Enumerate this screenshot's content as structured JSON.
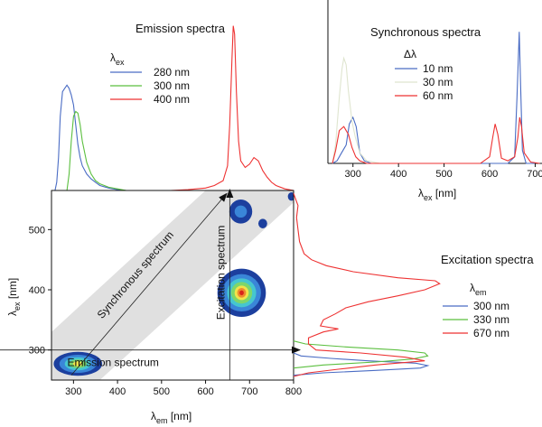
{
  "colors": {
    "blue": "#4a6cc4",
    "green": "#5bbf3f",
    "red": "#ee3232",
    "pale": "#dfe5cf",
    "band": "#e0e0e0",
    "contour_levels": [
      "#1c3f9e",
      "#3a86d8",
      "#45c6cf",
      "#7ed66a",
      "#f2e34a",
      "#ee8a2f",
      "#d8231b"
    ]
  },
  "chart_data": [
    {
      "id": "emission",
      "type": "line",
      "title": "Emission spectra",
      "legend_title_main": "λ",
      "legend_title_sub": "ex",
      "legend_position": "top-left",
      "xlim": [
        250,
        800
      ],
      "ylim": [
        0,
        1.02
      ],
      "series": [
        {
          "name": "280 nm",
          "color": "#4a6cc4",
          "x": [
            258,
            262,
            266,
            270,
            275,
            280,
            285,
            290,
            295,
            300,
            305,
            310,
            315,
            320,
            330,
            340,
            350,
            360,
            380,
            400,
            420
          ],
          "y": [
            0.0,
            0.05,
            0.2,
            0.45,
            0.6,
            0.62,
            0.64,
            0.62,
            0.58,
            0.52,
            0.4,
            0.28,
            0.2,
            0.15,
            0.1,
            0.07,
            0.05,
            0.03,
            0.015,
            0.005,
            0.0
          ]
        },
        {
          "name": "300 nm",
          "color": "#5bbf3f",
          "x": [
            285,
            290,
            295,
            300,
            305,
            310,
            315,
            320,
            330,
            340,
            350,
            360,
            380,
            400,
            420
          ],
          "y": [
            0.0,
            0.1,
            0.3,
            0.45,
            0.48,
            0.47,
            0.4,
            0.3,
            0.17,
            0.1,
            0.06,
            0.04,
            0.02,
            0.01,
            0.0
          ]
        },
        {
          "name": "400 nm",
          "color": "#ee3232",
          "x": [
            410,
            440,
            480,
            520,
            560,
            600,
            620,
            640,
            650,
            655,
            660,
            663,
            666,
            670,
            675,
            680,
            690,
            700,
            710,
            720,
            730,
            740,
            750,
            760,
            780,
            800
          ],
          "y": [
            0.0,
            0.0,
            0.0,
            0.0,
            0.005,
            0.015,
            0.03,
            0.06,
            0.15,
            0.4,
            0.8,
            1.0,
            0.95,
            0.6,
            0.3,
            0.18,
            0.14,
            0.16,
            0.2,
            0.18,
            0.12,
            0.08,
            0.05,
            0.03,
            0.01,
            0.0
          ]
        }
      ]
    },
    {
      "id": "synchronous",
      "type": "line",
      "title": "Synchronous  spectra",
      "xlabel_main": "λ",
      "xlabel_sub": "ex",
      "xlabel_unit": " [nm]",
      "legend_title": "Δλ",
      "legend_position": "top-center",
      "xticks": [
        300,
        400,
        500,
        600,
        700
      ],
      "xlim": [
        245,
        715
      ],
      "ylim": [
        0,
        1.05
      ],
      "series": [
        {
          "name": "10 nm",
          "color": "#4a6cc4",
          "x": [
            255,
            265,
            275,
            285,
            292,
            300,
            307,
            315,
            325,
            340,
            400,
            600,
            640,
            655,
            660,
            665,
            668,
            672,
            680,
            700
          ],
          "y": [
            0.0,
            0.02,
            0.08,
            0.14,
            0.3,
            0.35,
            0.28,
            0.08,
            0.02,
            0.0,
            0.0,
            0.0,
            0.0,
            0.05,
            0.5,
            1.0,
            0.6,
            0.1,
            0.0,
            0.0
          ]
        },
        {
          "name": "30 nm",
          "color": "#dfe5cf",
          "x": [
            255,
            262,
            270,
            276,
            280,
            285,
            290,
            298,
            305,
            315,
            330,
            360,
            400
          ],
          "y": [
            0.0,
            0.15,
            0.5,
            0.72,
            0.8,
            0.75,
            0.55,
            0.32,
            0.2,
            0.08,
            0.02,
            0.0,
            0.0
          ]
        },
        {
          "name": "60 nm",
          "color": "#ee3232",
          "x": [
            255,
            262,
            270,
            280,
            290,
            298,
            306,
            315,
            330,
            400,
            580,
            600,
            607,
            612,
            618,
            626,
            640,
            655,
            662,
            666,
            670,
            676,
            690,
            710
          ],
          "y": [
            0.0,
            0.1,
            0.25,
            0.28,
            0.22,
            0.12,
            0.05,
            0.02,
            0.0,
            0.0,
            0.0,
            0.05,
            0.2,
            0.3,
            0.22,
            0.04,
            0.02,
            0.05,
            0.2,
            0.35,
            0.28,
            0.08,
            0.01,
            0.0
          ]
        }
      ]
    },
    {
      "id": "eem",
      "type": "heatmap",
      "xlabel_main": "λ",
      "xlabel_sub": "em",
      "xlabel_unit": " [nm]",
      "ylabel_main": "λ",
      "ylabel_sub": "ex",
      "ylabel_unit": " [nm]",
      "xlim": [
        250,
        800
      ],
      "ylim": [
        250,
        565
      ],
      "xticks": [
        300,
        400,
        500,
        600,
        700,
        800
      ],
      "yticks": [
        300,
        400,
        500
      ],
      "band_polygon": [
        [
          250,
          250
        ],
        [
          360,
          250
        ],
        [
          800,
          545
        ],
        [
          800,
          565
        ],
        [
          600,
          565
        ],
        [
          250,
          330
        ]
      ],
      "emission_line": {
        "y": 300,
        "label": "Emission spectrum"
      },
      "excitation_line": {
        "x": 655,
        "label": "Excitation spectrum"
      },
      "synchronous_line": {
        "x0": 295,
        "y0": 258,
        "x1": 648,
        "y1": 560,
        "label": "Synchronous spectrum"
      },
      "peaks": [
        {
          "x": 310,
          "y": 277,
          "rx": [
            55,
            42,
            30,
            20,
            11
          ],
          "ry": [
            20,
            15,
            11,
            7,
            4
          ],
          "levels": [
            0,
            1,
            2,
            3,
            4
          ]
        },
        {
          "x": 682,
          "y": 395,
          "rx": [
            55,
            44,
            33,
            24,
            16,
            10,
            5
          ],
          "ry": [
            40,
            31,
            24,
            18,
            12,
            8,
            4
          ],
          "levels": [
            0,
            1,
            2,
            3,
            4,
            5,
            6
          ]
        },
        {
          "x": 680,
          "y": 530,
          "rx": [
            26,
            14
          ],
          "ry": [
            20,
            10
          ],
          "levels": [
            0,
            1
          ]
        },
        {
          "x": 730,
          "y": 510,
          "rx": [
            10
          ],
          "ry": [
            8
          ],
          "levels": [
            0
          ]
        },
        {
          "x": 795,
          "y": 555,
          "rx": [
            8
          ],
          "ry": [
            7
          ],
          "levels": [
            0
          ]
        }
      ]
    },
    {
      "id": "excitation",
      "type": "line",
      "orientation": "vertical",
      "title": "Excitation spectra",
      "legend_title_main": "λ",
      "legend_title_sub": "em",
      "legend_position": "right",
      "ylim": [
        250,
        565
      ],
      "xlim": [
        0,
        1.0
      ],
      "series": [
        {
          "name": " 300 nm",
          "color": "#4a6cc4",
          "y": [
            258,
            262,
            266,
            270,
            274,
            278,
            282,
            286,
            290,
            295
          ],
          "x": [
            0.0,
            0.2,
            0.55,
            0.85,
            0.9,
            0.82,
            0.5,
            0.25,
            0.05,
            0.0
          ]
        },
        {
          "name": "330 nm",
          "color": "#5bbf3f",
          "y": [
            270,
            275,
            280,
            285,
            290,
            295,
            300,
            305,
            310,
            315
          ],
          "x": [
            0.0,
            0.2,
            0.55,
            0.8,
            0.9,
            0.88,
            0.7,
            0.35,
            0.08,
            0.0
          ]
        },
        {
          "name": "670 nm",
          "color": "#ee3232",
          "y": [
            256,
            262,
            268,
            275,
            282,
            288,
            295,
            300,
            310,
            320,
            330,
            335,
            340,
            350,
            360,
            370,
            380,
            390,
            400,
            410,
            415,
            420,
            430,
            440,
            450,
            460,
            480,
            500,
            520,
            540,
            560
          ],
          "x": [
            0.0,
            0.1,
            0.3,
            0.55,
            0.88,
            0.75,
            0.45,
            0.15,
            0.1,
            0.1,
            0.2,
            0.3,
            0.18,
            0.2,
            0.28,
            0.35,
            0.5,
            0.7,
            0.88,
            0.98,
            0.95,
            0.7,
            0.4,
            0.22,
            0.12,
            0.07,
            0.04,
            0.03,
            0.02,
            0.03,
            0.0
          ]
        }
      ]
    }
  ]
}
